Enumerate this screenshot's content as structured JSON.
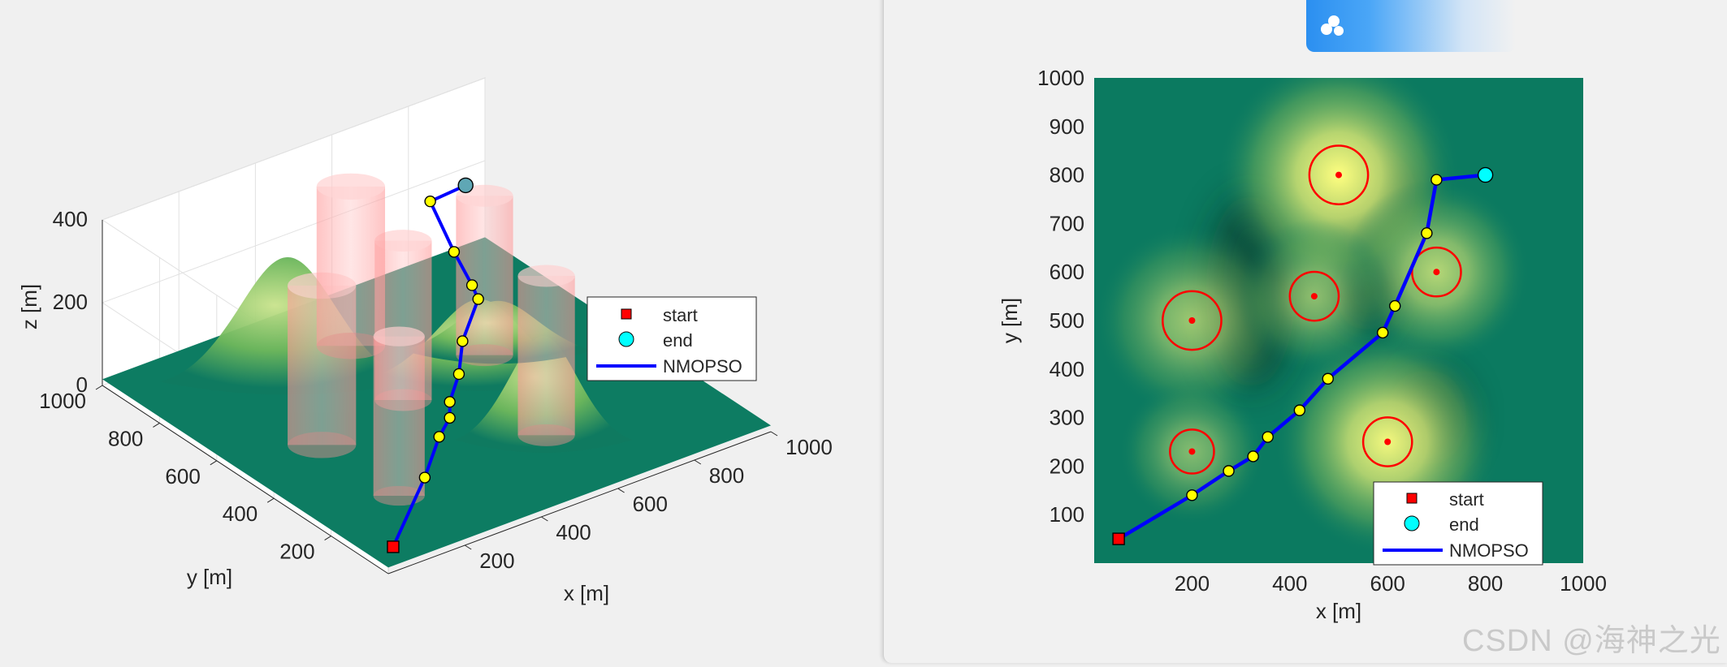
{
  "app_badge": {
    "label": ""
  },
  "watermark": {
    "text": "CSDN @海神之光"
  },
  "legend": {
    "start": "start",
    "end": "end",
    "path": "NMOPSO"
  },
  "colors": {
    "path": "#0000ff",
    "waypoint": "#ffff00",
    "start": "#ff0000",
    "end": "#00ffff",
    "threat": "#ff0000",
    "terrain_low": "#0b7a60",
    "terrain_high": "#ffff80"
  },
  "chart_data": [
    {
      "type": "surface3d",
      "title": "",
      "xlabel": "x [m]",
      "ylabel": "y [m]",
      "zlabel": "z [m]",
      "xlim": [
        0,
        1000
      ],
      "ylim": [
        0,
        1000
      ],
      "zlim": [
        0,
        400
      ],
      "xticks": [
        200,
        400,
        600,
        800,
        1000
      ],
      "yticks": [
        200,
        400,
        600,
        800,
        1000
      ],
      "zticks": [
        0,
        200,
        400
      ],
      "grid": true,
      "legend_position": "right",
      "series": [
        {
          "name": "start",
          "x": [
            50
          ],
          "y": [
            50
          ],
          "z": [
            25
          ]
        },
        {
          "name": "end",
          "x": [
            800
          ],
          "y": [
            800
          ],
          "z": [
            300
          ]
        },
        {
          "name": "NMOPSO",
          "x": [
            50,
            200,
            275,
            325,
            355,
            420,
            478,
            590,
            615,
            680,
            700,
            800
          ],
          "y": [
            50,
            140,
            190,
            220,
            260,
            315,
            380,
            475,
            530,
            680,
            790,
            800
          ],
          "z": [
            25,
            100,
            150,
            165,
            175,
            195,
            225,
            245,
            245,
            235,
            300,
            300
          ]
        }
      ],
      "threats": [
        {
          "x": 200,
          "y": 500,
          "r": 60,
          "height": 400
        },
        {
          "x": 450,
          "y": 550,
          "r": 50,
          "height": 400
        },
        {
          "x": 500,
          "y": 800,
          "r": 60,
          "height": 400
        },
        {
          "x": 700,
          "y": 600,
          "r": 50,
          "height": 400
        },
        {
          "x": 200,
          "y": 230,
          "r": 45,
          "height": 400
        },
        {
          "x": 600,
          "y": 250,
          "r": 50,
          "height": 400
        }
      ]
    },
    {
      "type": "heatmap",
      "title": "",
      "xlabel": "x [m]",
      "ylabel": "y [m]",
      "xlim": [
        0,
        1000
      ],
      "ylim": [
        0,
        1000
      ],
      "xticks": [
        200,
        400,
        600,
        800,
        1000
      ],
      "yticks": [
        100,
        200,
        300,
        400,
        500,
        600,
        700,
        800,
        900,
        1000
      ],
      "legend_position": "bottom-right",
      "terrain_peaks": [
        {
          "x": 500,
          "y": 800,
          "h": 1.0
        },
        {
          "x": 600,
          "y": 250,
          "h": 0.95
        },
        {
          "x": 700,
          "y": 600,
          "h": 0.7
        },
        {
          "x": 200,
          "y": 500,
          "h": 0.6
        },
        {
          "x": 450,
          "y": 550,
          "h": 0.55
        },
        {
          "x": 200,
          "y": 230,
          "h": 0.5
        }
      ],
      "series": [
        {
          "name": "start",
          "x": [
            50
          ],
          "y": [
            50
          ]
        },
        {
          "name": "end",
          "x": [
            800
          ],
          "y": [
            800
          ]
        },
        {
          "name": "NMOPSO",
          "x": [
            50,
            200,
            275,
            325,
            355,
            420,
            478,
            590,
            615,
            680,
            700,
            800
          ],
          "y": [
            50,
            140,
            190,
            220,
            260,
            315,
            380,
            475,
            530,
            680,
            790,
            800
          ]
        }
      ],
      "threats": [
        {
          "x": 200,
          "y": 500,
          "r": 60
        },
        {
          "x": 450,
          "y": 550,
          "r": 50
        },
        {
          "x": 500,
          "y": 800,
          "r": 60
        },
        {
          "x": 700,
          "y": 600,
          "r": 50
        },
        {
          "x": 200,
          "y": 230,
          "r": 45
        },
        {
          "x": 600,
          "y": 250,
          "r": 50
        }
      ]
    }
  ]
}
